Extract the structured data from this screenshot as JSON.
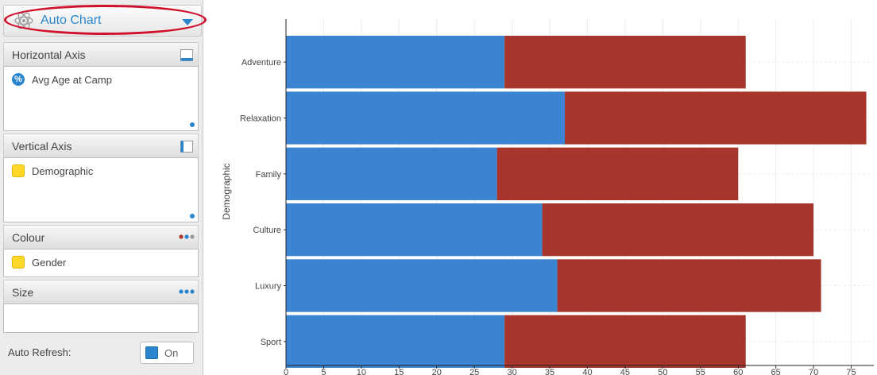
{
  "chart_selector": {
    "label": "Auto Chart",
    "icon": "atom-icon"
  },
  "sections": {
    "horizontal_axis": {
      "title": "Horizontal Axis",
      "field": "Avg Age at Camp",
      "field_icon": "percent-icon"
    },
    "vertical_axis": {
      "title": "Vertical Axis",
      "field": "Demographic",
      "field_icon": "dimension-icon"
    },
    "colour": {
      "title": "Colour",
      "field": "Gender",
      "field_icon": "dimension-icon"
    },
    "size": {
      "title": "Size",
      "field": ""
    }
  },
  "auto_refresh": {
    "label": "Auto Refresh:",
    "state": "On"
  },
  "colors": {
    "accent": "#2b86cf",
    "series_a": "#3a84d2",
    "series_b": "#a8352b",
    "highlight_ring": "#d0112b"
  },
  "chart_data": {
    "type": "bar",
    "orientation": "horizontal",
    "stacked": true,
    "categories": [
      "Adventure",
      "Relaxation",
      "Family",
      "Culture",
      "Luxury",
      "Sport"
    ],
    "series": [
      {
        "values": [
          29,
          37,
          28,
          34,
          36,
          29
        ]
      },
      {
        "values": [
          32,
          40,
          32,
          36,
          35,
          32
        ]
      }
    ],
    "ylabel": "Demographic",
    "xlabel": "",
    "xlim": [
      0,
      78
    ],
    "x_ticks": [
      0,
      5,
      10,
      15,
      20,
      25,
      30,
      35,
      40,
      45,
      50,
      55,
      60,
      65,
      70,
      75
    ],
    "grid": true
  }
}
